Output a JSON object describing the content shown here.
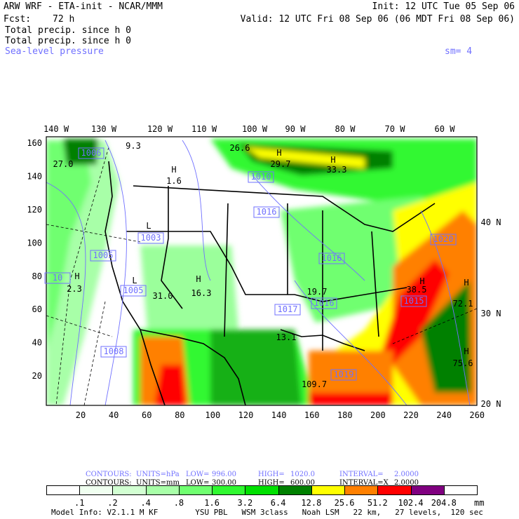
{
  "header": {
    "model": "ARW WRF - ETA-init - NCAR/MMM",
    "init": "Init: 12 UTC Tue 05 Sep 06",
    "fcst_label": "Fcst:",
    "fcst_value": "72 h",
    "valid": "Valid: 12 UTC Fri 08 Sep 06 (06 MDT Fri 08 Sep 06)",
    "field1": "Total precip. since h 0",
    "field2": "Total precip. since h 0",
    "field3": "Sea-level pressure",
    "smoothing": "sm= 4"
  },
  "map": {
    "lon_labels": [
      "140 W",
      "130 W",
      "120 W",
      "110 W",
      "100 W",
      "90 W",
      "80 W",
      "70 W",
      "60 W"
    ],
    "lat_labels": [
      "40 N",
      "30 N",
      "20 N"
    ],
    "x_ticks": [
      "20",
      "40",
      "60",
      "80",
      "100",
      "120",
      "140",
      "160",
      "180",
      "200",
      "220",
      "240",
      "260"
    ],
    "y_ticks": [
      "20",
      "40",
      "60",
      "80",
      "100",
      "120",
      "140",
      "160"
    ],
    "labels": [
      "27.0",
      "1006",
      "9.3",
      "H",
      "1.6",
      "26.6",
      "H",
      "29.7",
      "H",
      "33.3",
      "1016",
      "1010",
      "L",
      "1003",
      "1005",
      "10",
      "H",
      "2.3",
      "L",
      "1005",
      "31.0",
      "H",
      "16.3",
      "19.7",
      "1017",
      "1016",
      "1016",
      "13.1",
      "H",
      "38.5",
      "1015",
      "1020",
      "H",
      "72.1",
      "H",
      "75.6",
      "1008",
      "1019",
      "109.7"
    ],
    "colors": {
      "pressure_contour": "#7070ff",
      "border": "#000000"
    }
  },
  "contours": {
    "slp": {
      "label": "CONTOURS:",
      "units": "UNITS=hPa",
      "low_label": "LOW=",
      "low": "996.00",
      "high_label": "HIGH=",
      "high": "1020.0",
      "interval_label": "INTERVAL=",
      "interval": "2.0000"
    },
    "precip": {
      "label": "CONTOURS:",
      "units": "UNITS=mm",
      "low_label": "LOW=",
      "low": "300.00",
      "high_label": "HIGH=",
      "high": "600.00",
      "interval_label": "INTERVAL=X",
      "interval": "2.0000"
    }
  },
  "colorbar": {
    "colors": [
      "#ffffff",
      "#f0fff0",
      "#d2ffd2",
      "#a8ffa8",
      "#70ff70",
      "#30f830",
      "#00e000",
      "#008000",
      "#ffff00",
      "#ff8000",
      "#ff0000",
      "#800080",
      "#ffffff"
    ],
    "labels": [
      ".1",
      ".2",
      ".4",
      ".8",
      "1.6",
      "3.2",
      "6.4",
      "12.8",
      "25.6",
      "51.2",
      "102.4",
      "204.8"
    ],
    "units": "mm"
  },
  "footer": "Model Info: V2.1.1 M KF        YSU PBL   WSM 3class   Noah LSM   22 km,   27 levels,  120 sec"
}
